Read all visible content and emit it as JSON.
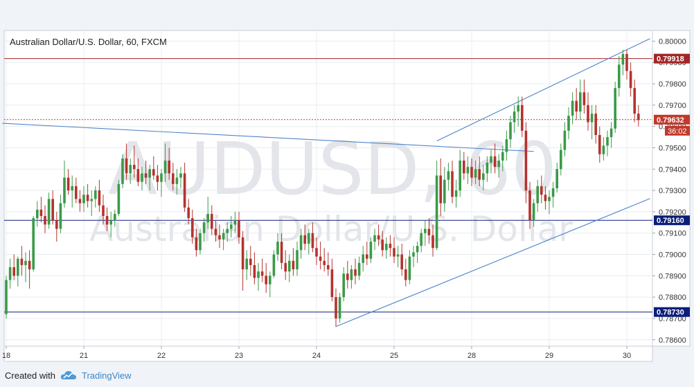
{
  "chart_data": {
    "type": "candlestick",
    "title": "Australian Dollar/U.S. Dollar, 60, FXCM",
    "watermark_symbol": "AUDUSD, 60",
    "watermark_name": "Australian Dollar/U.S. Dollar",
    "ylim": [
      0.7857,
      0.8005
    ],
    "y_ticks": [
      "0.80000",
      "0.79900",
      "0.79800",
      "0.79700",
      "0.79600",
      "0.79500",
      "0.79400",
      "0.79300",
      "0.79200",
      "0.79100",
      "0.79000",
      "0.78900",
      "0.78800",
      "0.78700",
      "0.78600"
    ],
    "y_tick_values": [
      0.8,
      0.799,
      0.798,
      0.797,
      0.796,
      0.795,
      0.794,
      0.793,
      0.792,
      0.791,
      0.79,
      0.789,
      0.788,
      0.787,
      0.786
    ],
    "x_ticks": [
      "18",
      "21",
      "22",
      "23",
      "24",
      "25",
      "28",
      "29",
      "30"
    ],
    "x_tick_bars": [
      0,
      20,
      40,
      60,
      80,
      100,
      120,
      140,
      160
    ],
    "bars_total": 167,
    "horizontal_levels": [
      {
        "value": 0.79918,
        "label": "0.79918",
        "color": "#a32626",
        "style": "solid"
      },
      {
        "value": 0.7916,
        "label": "0.79160",
        "color": "#0b1e7a",
        "style": "solid"
      },
      {
        "value": 0.7873,
        "label": "0.78730",
        "color": "#0b1e7a",
        "style": "solid"
      },
      {
        "value": 0.79632,
        "label": "0.79632",
        "color": "#c0392b",
        "style": "dotted"
      }
    ],
    "countdown": "36:02",
    "trendlines": [
      {
        "from": [
          -1,
          0.79615
        ],
        "to": [
          136,
          0.79483
        ]
      },
      {
        "from": [
          111,
          0.79532
        ],
        "to": [
          166,
          0.80012
        ]
      },
      {
        "from": [
          85,
          0.78662
        ],
        "to": [
          166,
          0.79262
        ]
      }
    ],
    "candles": [
      [
        0.7872,
        0.789,
        0.787,
        0.7888
      ],
      [
        0.7888,
        0.7898,
        0.7884,
        0.7894
      ],
      [
        0.7894,
        0.79,
        0.7888,
        0.789
      ],
      [
        0.789,
        0.7899,
        0.7885,
        0.7898
      ],
      [
        0.7898,
        0.7904,
        0.789,
        0.7895
      ],
      [
        0.7895,
        0.7901,
        0.7887,
        0.7897
      ],
      [
        0.7897,
        0.7902,
        0.7884,
        0.7893
      ],
      [
        0.7893,
        0.7918,
        0.7892,
        0.7917
      ],
      [
        0.7917,
        0.7925,
        0.7913,
        0.7921
      ],
      [
        0.7921,
        0.7927,
        0.7915,
        0.7918
      ],
      [
        0.7918,
        0.7923,
        0.791,
        0.7914
      ],
      [
        0.7914,
        0.7929,
        0.7912,
        0.7926
      ],
      [
        0.7926,
        0.793,
        0.7914,
        0.7916
      ],
      [
        0.7916,
        0.792,
        0.7906,
        0.7912
      ],
      [
        0.7912,
        0.7928,
        0.791,
        0.7924
      ],
      [
        0.7924,
        0.7944,
        0.7922,
        0.7936
      ],
      [
        0.7936,
        0.794,
        0.7928,
        0.793
      ],
      [
        0.793,
        0.7937,
        0.7922,
        0.7932
      ],
      [
        0.7932,
        0.7936,
        0.7924,
        0.7926
      ],
      [
        0.7926,
        0.793,
        0.792,
        0.7924
      ],
      [
        0.7924,
        0.7932,
        0.792,
        0.7928
      ],
      [
        0.7928,
        0.7933,
        0.7922,
        0.7925
      ],
      [
        0.7925,
        0.793,
        0.7918,
        0.7926
      ],
      [
        0.7926,
        0.7932,
        0.7922,
        0.793
      ],
      [
        0.793,
        0.7935,
        0.792,
        0.7923
      ],
      [
        0.7923,
        0.7928,
        0.7914,
        0.7918
      ],
      [
        0.7918,
        0.7922,
        0.7911,
        0.7914
      ],
      [
        0.7914,
        0.792,
        0.7908,
        0.7916
      ],
      [
        0.7916,
        0.7921,
        0.7913,
        0.7919
      ],
      [
        0.7919,
        0.7935,
        0.7918,
        0.7933
      ],
      [
        0.7933,
        0.7947,
        0.7931,
        0.7945
      ],
      [
        0.7945,
        0.7952,
        0.7935,
        0.7938
      ],
      [
        0.7938,
        0.7945,
        0.7933,
        0.7942
      ],
      [
        0.7942,
        0.7951,
        0.7936,
        0.794
      ],
      [
        0.794,
        0.7945,
        0.7932,
        0.7934
      ],
      [
        0.7934,
        0.7941,
        0.793,
        0.7938
      ],
      [
        0.7938,
        0.7944,
        0.7933,
        0.7936
      ],
      [
        0.7936,
        0.7942,
        0.793,
        0.794
      ],
      [
        0.794,
        0.7946,
        0.7935,
        0.7937
      ],
      [
        0.7937,
        0.7942,
        0.793,
        0.7934
      ],
      [
        0.7934,
        0.794,
        0.7927,
        0.7938
      ],
      [
        0.7938,
        0.7952,
        0.7934,
        0.7944
      ],
      [
        0.7944,
        0.795,
        0.7935,
        0.7938
      ],
      [
        0.7938,
        0.7943,
        0.793,
        0.7933
      ],
      [
        0.7933,
        0.794,
        0.7928,
        0.7936
      ],
      [
        0.7936,
        0.7941,
        0.7931,
        0.7938
      ],
      [
        0.7938,
        0.7943,
        0.792,
        0.7922
      ],
      [
        0.7922,
        0.7926,
        0.7914,
        0.7917
      ],
      [
        0.7917,
        0.7921,
        0.7905,
        0.7908
      ],
      [
        0.7908,
        0.7912,
        0.7899,
        0.7902
      ],
      [
        0.7902,
        0.7912,
        0.79,
        0.791
      ],
      [
        0.791,
        0.7917,
        0.7906,
        0.7915
      ],
      [
        0.7915,
        0.7927,
        0.7912,
        0.7919
      ],
      [
        0.7919,
        0.7923,
        0.7909,
        0.7912
      ],
      [
        0.7912,
        0.7916,
        0.7906,
        0.7909
      ],
      [
        0.7909,
        0.7914,
        0.7903,
        0.7907
      ],
      [
        0.7907,
        0.7912,
        0.7902,
        0.791
      ],
      [
        0.791,
        0.7915,
        0.7906,
        0.7912
      ],
      [
        0.7912,
        0.7918,
        0.7908,
        0.7914
      ],
      [
        0.7914,
        0.792,
        0.791,
        0.7916
      ],
      [
        0.7916,
        0.792,
        0.7905,
        0.7908
      ],
      [
        0.7908,
        0.7911,
        0.7883,
        0.7893
      ],
      [
        0.7893,
        0.7902,
        0.7888,
        0.7898
      ],
      [
        0.7898,
        0.7904,
        0.789,
        0.7895
      ],
      [
        0.7895,
        0.7901,
        0.7886,
        0.7889
      ],
      [
        0.7889,
        0.7896,
        0.7883,
        0.7892
      ],
      [
        0.7892,
        0.7898,
        0.7887,
        0.789
      ],
      [
        0.789,
        0.7896,
        0.7882,
        0.7886
      ],
      [
        0.7886,
        0.7892,
        0.788,
        0.789
      ],
      [
        0.789,
        0.7902,
        0.7889,
        0.79
      ],
      [
        0.79,
        0.791,
        0.7897,
        0.7906
      ],
      [
        0.7906,
        0.791,
        0.7893,
        0.7896
      ],
      [
        0.7896,
        0.7902,
        0.7888,
        0.7892
      ],
      [
        0.7892,
        0.79,
        0.7887,
        0.7897
      ],
      [
        0.7897,
        0.7903,
        0.789,
        0.7893
      ],
      [
        0.7893,
        0.7906,
        0.789,
        0.7902
      ],
      [
        0.7902,
        0.7912,
        0.7898,
        0.7909
      ],
      [
        0.7909,
        0.7914,
        0.7902,
        0.7905
      ],
      [
        0.7905,
        0.7912,
        0.79,
        0.791
      ],
      [
        0.791,
        0.7915,
        0.7901,
        0.7903
      ],
      [
        0.7903,
        0.7908,
        0.7895,
        0.7899
      ],
      [
        0.7899,
        0.7906,
        0.7893,
        0.7897
      ],
      [
        0.7897,
        0.7903,
        0.7892,
        0.7895
      ],
      [
        0.7895,
        0.7901,
        0.789,
        0.7893
      ],
      [
        0.7893,
        0.7898,
        0.7878,
        0.788
      ],
      [
        0.788,
        0.7884,
        0.7866,
        0.787
      ],
      [
        0.787,
        0.7882,
        0.7868,
        0.788
      ],
      [
        0.788,
        0.7894,
        0.7878,
        0.7891
      ],
      [
        0.7891,
        0.7897,
        0.7884,
        0.7888
      ],
      [
        0.7888,
        0.7895,
        0.7884,
        0.7893
      ],
      [
        0.7893,
        0.7898,
        0.7886,
        0.789
      ],
      [
        0.789,
        0.7899,
        0.7888,
        0.7896
      ],
      [
        0.7896,
        0.7904,
        0.7892,
        0.79
      ],
      [
        0.79,
        0.7906,
        0.7895,
        0.7898
      ],
      [
        0.7898,
        0.7908,
        0.7896,
        0.7906
      ],
      [
        0.7906,
        0.7912,
        0.7902,
        0.7909
      ],
      [
        0.7909,
        0.7914,
        0.7904,
        0.7907
      ],
      [
        0.7907,
        0.7911,
        0.7899,
        0.7902
      ],
      [
        0.7902,
        0.7908,
        0.7898,
        0.7905
      ],
      [
        0.7905,
        0.7909,
        0.7899,
        0.7903
      ],
      [
        0.7903,
        0.7908,
        0.7896,
        0.7899
      ],
      [
        0.7899,
        0.7904,
        0.7894,
        0.79
      ],
      [
        0.79,
        0.7905,
        0.789,
        0.7893
      ],
      [
        0.7893,
        0.7898,
        0.7885,
        0.7888
      ],
      [
        0.7888,
        0.7902,
        0.7886,
        0.7899
      ],
      [
        0.7899,
        0.7904,
        0.7894,
        0.7901
      ],
      [
        0.7901,
        0.7906,
        0.7896,
        0.7904
      ],
      [
        0.7904,
        0.7912,
        0.7901,
        0.791
      ],
      [
        0.791,
        0.7916,
        0.7904,
        0.7912
      ],
      [
        0.7912,
        0.7917,
        0.7905,
        0.7909
      ],
      [
        0.7909,
        0.7914,
        0.7899,
        0.7903
      ],
      [
        0.7903,
        0.7944,
        0.7902,
        0.7937
      ],
      [
        0.7937,
        0.7945,
        0.7918,
        0.7924
      ],
      [
        0.7924,
        0.7941,
        0.792,
        0.7935
      ],
      [
        0.7935,
        0.7943,
        0.793,
        0.7939
      ],
      [
        0.7939,
        0.7944,
        0.7924,
        0.7927
      ],
      [
        0.7927,
        0.7935,
        0.7922,
        0.793
      ],
      [
        0.793,
        0.7949,
        0.7927,
        0.7944
      ],
      [
        0.7944,
        0.7948,
        0.7935,
        0.7938
      ],
      [
        0.7938,
        0.7946,
        0.7933,
        0.7941
      ],
      [
        0.7941,
        0.7945,
        0.7932,
        0.7936
      ],
      [
        0.7936,
        0.7944,
        0.7933,
        0.794
      ],
      [
        0.794,
        0.7946,
        0.7932,
        0.7935
      ],
      [
        0.7935,
        0.7942,
        0.793,
        0.7938
      ],
      [
        0.7938,
        0.7946,
        0.7934,
        0.7943
      ],
      [
        0.7943,
        0.7949,
        0.7938,
        0.7946
      ],
      [
        0.7946,
        0.7952,
        0.7938,
        0.7941
      ],
      [
        0.7941,
        0.7947,
        0.7936,
        0.7944
      ],
      [
        0.7944,
        0.7951,
        0.7939,
        0.7948
      ],
      [
        0.7948,
        0.7958,
        0.7944,
        0.7954
      ],
      [
        0.7954,
        0.7965,
        0.795,
        0.7962
      ],
      [
        0.7962,
        0.797,
        0.7957,
        0.7967
      ],
      [
        0.7967,
        0.7974,
        0.796,
        0.797
      ],
      [
        0.797,
        0.7974,
        0.7955,
        0.7958
      ],
      [
        0.7958,
        0.7962,
        0.7924,
        0.793
      ],
      [
        0.793,
        0.7934,
        0.7912,
        0.7916
      ],
      [
        0.7916,
        0.7926,
        0.7913,
        0.7924
      ],
      [
        0.7924,
        0.7935,
        0.792,
        0.7932
      ],
      [
        0.7932,
        0.7937,
        0.7924,
        0.7928
      ],
      [
        0.7928,
        0.7932,
        0.7921,
        0.7925
      ],
      [
        0.7925,
        0.793,
        0.7919,
        0.7927
      ],
      [
        0.7927,
        0.7934,
        0.7922,
        0.7931
      ],
      [
        0.7931,
        0.7943,
        0.7929,
        0.794
      ],
      [
        0.794,
        0.7952,
        0.7937,
        0.7949
      ],
      [
        0.7949,
        0.7962,
        0.7946,
        0.7958
      ],
      [
        0.7958,
        0.7969,
        0.7954,
        0.7965
      ],
      [
        0.7965,
        0.7976,
        0.7961,
        0.7972
      ],
      [
        0.7972,
        0.7978,
        0.7963,
        0.7967
      ],
      [
        0.7967,
        0.7982,
        0.7963,
        0.7976
      ],
      [
        0.7976,
        0.7982,
        0.7966,
        0.797
      ],
      [
        0.797,
        0.7976,
        0.7958,
        0.7962
      ],
      [
        0.7962,
        0.797,
        0.7954,
        0.7966
      ],
      [
        0.7966,
        0.797,
        0.7952,
        0.7956
      ],
      [
        0.7956,
        0.796,
        0.7943,
        0.7947
      ],
      [
        0.7947,
        0.7955,
        0.7944,
        0.7951
      ],
      [
        0.7951,
        0.7958,
        0.7946,
        0.7955
      ],
      [
        0.7955,
        0.7962,
        0.795,
        0.7959
      ],
      [
        0.7959,
        0.7981,
        0.7957,
        0.7978
      ],
      [
        0.7978,
        0.7993,
        0.7974,
        0.7989
      ],
      [
        0.7989,
        0.7996,
        0.7984,
        0.7994
      ],
      [
        0.7994,
        0.7996,
        0.7982,
        0.7986
      ],
      [
        0.7986,
        0.799,
        0.7974,
        0.7978
      ],
      [
        0.7978,
        0.7982,
        0.7962,
        0.7966
      ],
      [
        0.7966,
        0.797,
        0.796,
        0.7963
      ]
    ]
  },
  "footer": {
    "created_with": "Created with",
    "brand": "TradingView"
  },
  "colors": {
    "up": "#3a9a48",
    "down": "#b5322e",
    "trendline": "#4f85c9",
    "grid": "#e8ecf1",
    "axis_text": "#333333"
  },
  "icons": [
    "tradingview-cloud-icon"
  ]
}
